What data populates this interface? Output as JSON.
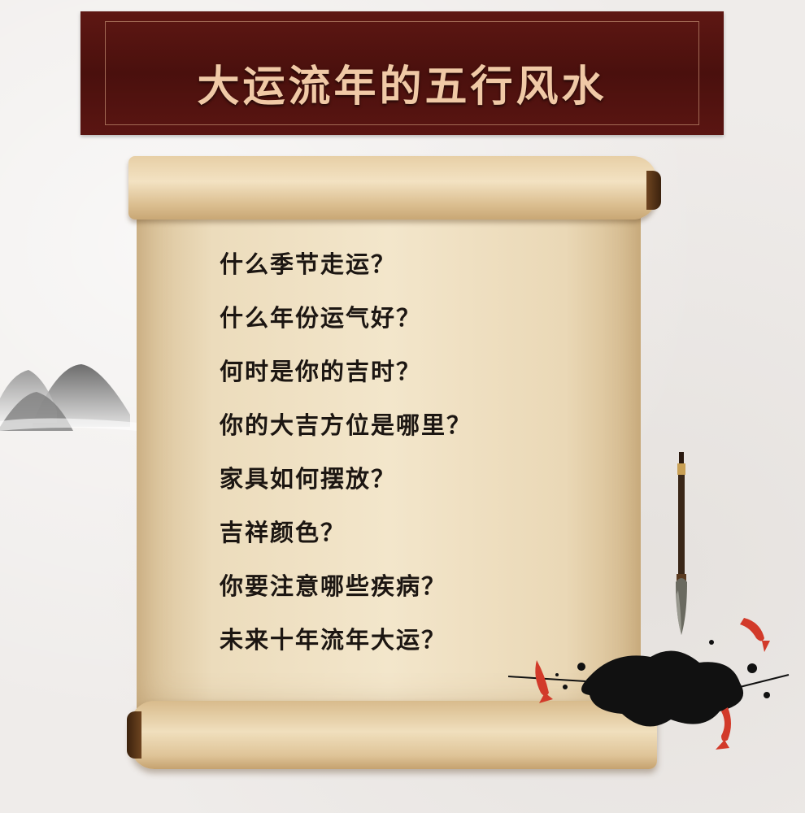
{
  "banner": {
    "title": "大运流年的五行风水"
  },
  "scroll": {
    "questions": [
      "什么季节走运？",
      "什么年份运气好？",
      "何时是你的吉时？",
      "你的大吉方位是哪里？",
      "家具如何摆放？",
      "吉祥颜色？",
      "你要注意哪些疾病？",
      "未来十年流年大运？"
    ]
  },
  "colors": {
    "banner_bg": "#4e110e",
    "banner_text": "#f0c9a6",
    "scroll_paper": "#f0e1c4",
    "question_text": "#1c1612",
    "koi": "#d23a2a"
  },
  "decor": {
    "icons": [
      "ink-mountains-icon",
      "calligraphy-brush-icon",
      "ink-splash-icon",
      "koi-fish-icon"
    ]
  }
}
